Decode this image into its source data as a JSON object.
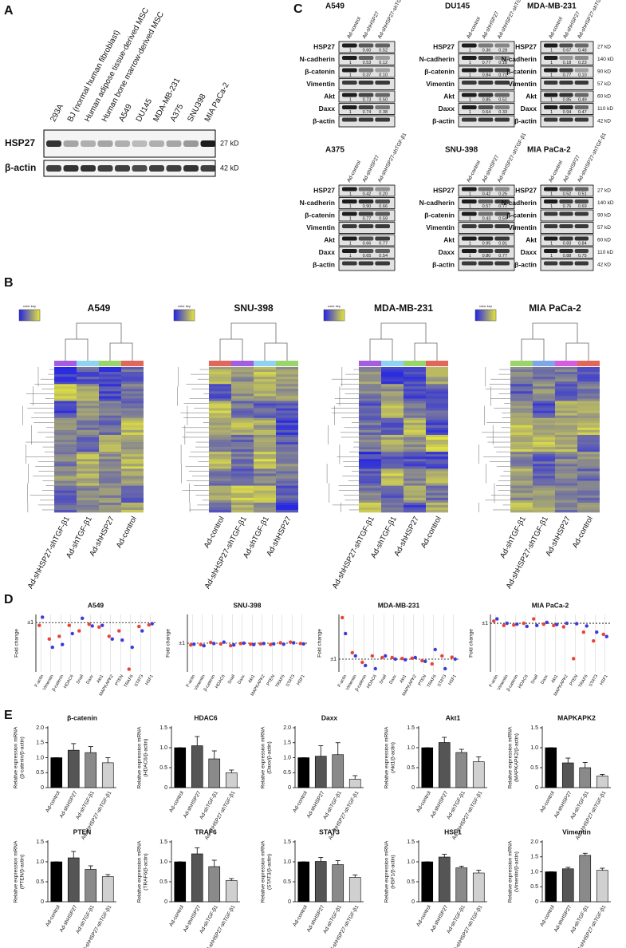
{
  "panel_labels": [
    "A",
    "B",
    "C",
    "D",
    "E"
  ],
  "blot_a": {
    "lanes": [
      "293A",
      "BJ (normal human fibroblast)",
      "Human adipose tissue-derived MSC",
      "Human bone marrow-derived MSC",
      "A549",
      "DU145",
      "MDA-MB-231",
      "A375",
      "SNU398",
      "MIA PaCa-2"
    ],
    "rows": [
      {
        "name": "HSP27",
        "size": "27 kD"
      },
      {
        "name": "β-actin",
        "size": "42 kD"
      }
    ]
  },
  "blots_c": {
    "lanes": [
      "Ad-control",
      "Ad-shHSP27",
      "Ad-shHSP27-shTGF-β1"
    ],
    "sizes": [
      "27 kD",
      "140 kD",
      "90 kD",
      "57 kD",
      "60 kD",
      "110 kD",
      "42 kD"
    ],
    "blots": [
      {
        "title": "A549",
        "rows": [
          {
            "name": "HSP27",
            "values": [
              "1",
              "0.60",
              "0.52"
            ]
          },
          {
            "name": "N-cadherin",
            "values": [
              "1",
              "0.53",
              "0.12"
            ]
          },
          {
            "name": "β-catenin",
            "values": [
              "1",
              "0.37",
              "0.10"
            ]
          },
          {
            "name": "Vimentin"
          },
          {
            "name": "Akt",
            "values": [
              "1",
              "0.73",
              "0.50"
            ]
          },
          {
            "name": "Daxx",
            "values": [
              "1",
              "0.74",
              "0.38"
            ]
          },
          {
            "name": "β-actin"
          }
        ]
      },
      {
        "title": "DU145",
        "rows": [
          {
            "name": "HSP27",
            "values": [
              "1",
              "0.36",
              "0.28"
            ]
          },
          {
            "name": "N-cadherin",
            "values": [
              "1",
              "0.77",
              "0.18"
            ]
          },
          {
            "name": "β-catenin",
            "values": [
              "1",
              "0.84",
              "0.71"
            ]
          },
          {
            "name": "Vimentin"
          },
          {
            "name": "Akt",
            "values": [
              "1",
              "0.85",
              "0.51"
            ]
          },
          {
            "name": "Daxx",
            "values": [
              "1",
              "0.64",
              "0.33"
            ]
          },
          {
            "name": "β-actin"
          }
        ]
      },
      {
        "title": "MDA-MB-231",
        "rows": [
          {
            "name": "HSP27",
            "values": [
              "1",
              "0.67",
              "0.48"
            ]
          },
          {
            "name": "N-cadherin",
            "values": [
              "1",
              "0.18",
              "0.23"
            ]
          },
          {
            "name": "β-catenin",
            "values": [
              "1",
              "0.77",
              "0.10"
            ]
          },
          {
            "name": "Vimentin"
          },
          {
            "name": "Akt",
            "values": [
              "1",
              "0.85",
              "0.49"
            ]
          },
          {
            "name": "Daxx",
            "values": [
              "1",
              "0.94",
              "0.47"
            ]
          },
          {
            "name": "β-actin"
          }
        ]
      },
      {
        "title": "A375",
        "rows": [
          {
            "name": "HSP27",
            "values": [
              "1",
              "0.42",
              "0.20"
            ]
          },
          {
            "name": "N-cadherin",
            "values": [
              "1",
              "0.90",
              "0.66"
            ]
          },
          {
            "name": "β-catenin",
            "values": [
              "1",
              "0.77",
              "0.59"
            ]
          },
          {
            "name": "Vimentin"
          },
          {
            "name": "Akt",
            "values": [
              "1",
              "0.66",
              "0.77"
            ]
          },
          {
            "name": "Daxx",
            "values": [
              "1",
              "0.65",
              "0.54"
            ]
          },
          {
            "name": "β-actin"
          }
        ]
      },
      {
        "title": "SNU-398",
        "rows": [
          {
            "name": "HSP27",
            "values": [
              "1",
              "0.42",
              "0.25"
            ]
          },
          {
            "name": "N-cadherin",
            "values": [
              "1",
              "0.57",
              "0.77"
            ]
          },
          {
            "name": "β-catenin",
            "values": [
              "1",
              "0.43",
              "0.59"
            ]
          },
          {
            "name": "Vimentin"
          },
          {
            "name": "Akt",
            "values": [
              "1",
              "0.95",
              "0.81"
            ]
          },
          {
            "name": "Daxx",
            "values": [
              "1",
              "0.80",
              "0.77"
            ]
          },
          {
            "name": "β-actin"
          }
        ]
      },
      {
        "title": "MIA PaCa-2",
        "rows": [
          {
            "name": "HSP27",
            "values": [
              "1",
              "0.52",
              "0.51"
            ]
          },
          {
            "name": "N-cadherin",
            "values": [
              "1",
              "0.76",
              "0.69"
            ]
          },
          {
            "name": "β-catenin"
          },
          {
            "name": "Vimentin"
          },
          {
            "name": "Akt",
            "values": [
              "1",
              "0.83",
              "0.84"
            ]
          },
          {
            "name": "Daxx",
            "values": [
              "1",
              "0.88",
              "0.75"
            ]
          },
          {
            "name": "β-actin"
          }
        ]
      }
    ]
  },
  "heatmaps": {
    "color_key": "color key",
    "low_color": "#2323e6",
    "high_color": "#e6e63c",
    "maps": [
      {
        "title": "A549",
        "columns": [
          "Ad-shHSP27-shTGF-β1",
          "Ad-shTGF-β1",
          "Ad-shHSP27",
          "Ad-control"
        ],
        "colors": [
          "#a35de0",
          "#8fd3f0",
          "#9ad46a",
          "#e0675a"
        ]
      },
      {
        "title": "SNU-398",
        "columns": [
          "Ad-control",
          "Ad-shHSP27-shTGF-β1",
          "Ad-shTGF-β1",
          "Ad-shHSP27"
        ],
        "colors": [
          "#e0675a",
          "#a35de0",
          "#8fd3f0",
          "#9ad46a"
        ]
      },
      {
        "title": "MDA-MB-231",
        "columns": [
          "Ad-shHSP27-shTGF-β1",
          "Ad-shTGF-β1",
          "Ad-shHSP27",
          "Ad-control"
        ],
        "colors": [
          "#a35de0",
          "#8fd3f0",
          "#9ad46a",
          "#e0675a"
        ]
      },
      {
        "title": "MIA PaCa-2",
        "columns": [
          "Ad-shTGF-β1",
          "Ad-shHSP27-shTGF-β1",
          "Ad-shHSP27",
          "Ad-control"
        ],
        "colors": [
          "#9ad46a",
          "#7fa6e8",
          "#d45de0",
          "#e0675a"
        ]
      }
    ]
  },
  "chart_data": [
    {
      "type": "dot",
      "title": "A549",
      "ylabel": "Fold change",
      "categories": [
        "F-actin",
        "Vimentin",
        "β-catenin",
        "HDAC6",
        "Snail",
        "Daxx",
        "Akt1",
        "MAPKAPK2",
        "PTEN",
        "TRAF6",
        "STAT3",
        "HSF1"
      ],
      "series": [
        {
          "color": "#e8433a",
          "values": [
            0.5,
            -2,
            -1.5,
            0.5,
            -0.5,
            0.7,
            0.2,
            -1.5,
            -0.5,
            -7.5,
            0.3,
            0.6
          ]
        },
        {
          "color": "#3b3bd9",
          "values": [
            2,
            -3.5,
            -3,
            -1,
            1.8,
            0.4,
            0.5,
            -2,
            -2.2,
            -3.5,
            -0.5,
            0.8
          ]
        }
      ],
      "ylim": [
        -8,
        2.5
      ],
      "yticks": [
        {
          "value": 1,
          "label": "±1"
        }
      ],
      "grid": true
    },
    {
      "type": "dot",
      "title": "SNU-398",
      "ylabel": "Fold change",
      "categories": [
        "F-actin",
        "Vimentin",
        "β-catenin",
        "HDAC6",
        "Snail",
        "Daxx",
        "Akt1",
        "MAPKAPK2",
        "PTEN",
        "TRAF6",
        "STAT3",
        "HSF1"
      ],
      "series": [
        {
          "color": "#e8433a",
          "values": [
            0.5,
            0.6,
            1.2,
            0.8,
            0.3,
            0.9,
            0.7,
            0.8,
            0.6,
            1.1,
            1.3,
            0.9
          ]
        },
        {
          "color": "#3b3bd9",
          "values": [
            0.7,
            0.3,
            0.9,
            1.3,
            0.5,
            1,
            0.6,
            0.9,
            0.8,
            0.7,
            1.1,
            0.8
          ]
        }
      ],
      "ylim": [
        -7,
        9
      ],
      "yticks": [
        {
          "value": 1,
          "label": "±1"
        }
      ],
      "grid": true
    },
    {
      "type": "dot",
      "title": "MDA-MB-231",
      "ylabel": "Fold change",
      "categories": [
        "F-actin",
        "Vimentin",
        "β-catenin",
        "HDAC6",
        "Snail",
        "Daxx",
        "Akt1",
        "MAPKAPK2",
        "PTEN",
        "TRAF6",
        "STAT3",
        "HSF1"
      ],
      "series": [
        {
          "color": "#e8433a",
          "values": [
            14,
            3,
            0,
            2,
            1.5,
            1.5,
            1.2,
            1.3,
            0.5,
            -0.5,
            2,
            1.6
          ]
        },
        {
          "color": "#3b3bd9",
          "values": [
            9,
            2,
            -1,
            -2,
            2,
            1,
            0.8,
            1.5,
            0.3,
            4,
            -2,
            1
          ]
        }
      ],
      "ylim": [
        -3,
        15
      ],
      "yticks": [
        {
          "value": 1,
          "label": "±1"
        }
      ],
      "grid": true
    },
    {
      "type": "dot",
      "title": "MIA PaCa-2",
      "ylabel": "Fold change",
      "categories": [
        "F-actin",
        "Vimentin",
        "β-catenin",
        "HDAC6",
        "Snail",
        "Daxx",
        "Akt1",
        "MAPKAPK2",
        "PTEN",
        "TRAF6",
        "STAT3",
        "HSF1"
      ],
      "series": [
        {
          "color": "#e8433a",
          "values": [
            1.5,
            0.5,
            0.6,
            1,
            2,
            0.8,
            0.5,
            0.2,
            -7,
            -1,
            -3,
            -1.5
          ]
        },
        {
          "color": "#3b3bd9",
          "values": [
            2,
            1,
            0.8,
            0.3,
            0.5,
            1.2,
            0.7,
            1,
            0.9,
            0.4,
            -1,
            -2
          ]
        }
      ],
      "ylim": [
        -10,
        3
      ],
      "yticks": [
        {
          "value": 1,
          "label": "±1"
        }
      ],
      "grid": true
    },
    {
      "type": "bar",
      "title": "β-catenin",
      "ylabel": [
        "Relative expression mRNA",
        "(β-catenin/β-actin)"
      ],
      "categories": [
        "Ad-control",
        "Ad-shHSP27",
        "Ad-shTGF-β1",
        "Ad-shHSP27-shTGF-β1"
      ],
      "values": [
        1,
        1.25,
        1.17,
        0.83
      ],
      "errors": [
        0,
        0.22,
        0.2,
        0.17
      ],
      "colors": [
        "#000000",
        "#555555",
        "#8a8a8a",
        "#d0d0d0"
      ],
      "ylim": [
        0,
        2
      ],
      "yticks": [
        0,
        0.5,
        {
          "value": 1,
          "label": "1.0"
        },
        1.5,
        {
          "value": 2,
          "label": "2.0"
        }
      ]
    },
    {
      "type": "bar",
      "title": "HDAC6",
      "ylabel": [
        "Relative expression mRNA",
        "(HDAC6/β-actin)"
      ],
      "categories": [
        "Ad-control",
        "Ad-shHSP27",
        "Ad-shTGF-β1",
        "Ad-shHSP27-shTGF-β1"
      ],
      "values": [
        1,
        1.05,
        0.72,
        0.37
      ],
      "errors": [
        0,
        0.23,
        0.2,
        0.07
      ],
      "colors": [
        "#000000",
        "#555555",
        "#8a8a8a",
        "#d0d0d0"
      ],
      "ylim": [
        0,
        1.5
      ],
      "yticks": [
        0,
        0.5,
        {
          "value": 1,
          "label": "1.0"
        },
        1.5
      ]
    },
    {
      "type": "bar",
      "title": "Daxx",
      "ylabel": [
        "Relative expression mRNA",
        "(Daxx/β-actin)"
      ],
      "categories": [
        "Ad-control",
        "Ad-shHSP27",
        "Ad-shTGF-β1",
        "Ad-shHSP27-shTGF-β1"
      ],
      "values": [
        1,
        1.05,
        1.1,
        0.28
      ],
      "errors": [
        0,
        0.35,
        0.4,
        0.12
      ],
      "colors": [
        "#000000",
        "#555555",
        "#8a8a8a",
        "#d0d0d0"
      ],
      "ylim": [
        0,
        2
      ],
      "yticks": [
        0,
        0.5,
        {
          "value": 1,
          "label": "1.0"
        },
        1.5,
        {
          "value": 2,
          "label": "2.0"
        }
      ]
    },
    {
      "type": "bar",
      "title": "Akt1",
      "ylabel": [
        "Relative expression mRNA",
        "(Akt1/β-actin)"
      ],
      "categories": [
        "Ad-control",
        "Ad-shHSP27",
        "Ad-shTGF-β1",
        "Ad-shHSP27-shTGF-β1"
      ],
      "values": [
        1,
        1.13,
        0.88,
        0.65
      ],
      "errors": [
        0,
        0.13,
        0.08,
        0.12
      ],
      "colors": [
        "#000000",
        "#555555",
        "#8a8a8a",
        "#d0d0d0"
      ],
      "ylim": [
        0,
        1.5
      ],
      "yticks": [
        0,
        0.5,
        {
          "value": 1,
          "label": "1.0"
        },
        1.5
      ]
    },
    {
      "type": "bar",
      "title": "MAPKAPK2",
      "ylabel": [
        "Relative expression mRNA",
        "(MAPKAPK2/β-actin)"
      ],
      "categories": [
        "Ad-control",
        "Ad-shHSP27",
        "Ad-shTGF-β1",
        "Ad-shHSP27-shTGF-β1"
      ],
      "values": [
        1,
        0.62,
        0.5,
        0.29
      ],
      "errors": [
        0,
        0.12,
        0.13,
        0.04
      ],
      "colors": [
        "#000000",
        "#555555",
        "#8a8a8a",
        "#d0d0d0"
      ],
      "ylim": [
        0,
        1.5
      ],
      "yticks": [
        0,
        0.5,
        {
          "value": 1,
          "label": "1.0"
        },
        1.5
      ]
    },
    {
      "type": "bar",
      "title": "PTEN",
      "ylabel": [
        "Relative expression mRNA",
        "(PTEN/β-actin)"
      ],
      "categories": [
        "Ad-control",
        "Ad-shHSP27",
        "Ad-shTGF-β1",
        "Ad-shHSP27-shTGF-β1"
      ],
      "values": [
        1,
        1.1,
        0.81,
        0.63
      ],
      "errors": [
        0,
        0.16,
        0.09,
        0.05
      ],
      "colors": [
        "#000000",
        "#555555",
        "#8a8a8a",
        "#d0d0d0"
      ],
      "ylim": [
        0,
        1.5
      ],
      "yticks": [
        0,
        0.5,
        {
          "value": 1,
          "label": "1.0"
        },
        1.5
      ]
    },
    {
      "type": "bar",
      "title": "TRAF6",
      "ylabel": [
        "Relative expression mRNA",
        "(TRAF6/β-actin)"
      ],
      "categories": [
        "Ad-control",
        "Ad-shHSP27",
        "Ad-shTGF-β1",
        "Ad-shHSP27-shTGF-β1"
      ],
      "values": [
        1,
        1.2,
        0.88,
        0.53
      ],
      "errors": [
        0,
        0.15,
        0.16,
        0.05
      ],
      "colors": [
        "#000000",
        "#555555",
        "#8a8a8a",
        "#d0d0d0"
      ],
      "ylim": [
        0,
        1.5
      ],
      "yticks": [
        0,
        0.5,
        {
          "value": 1,
          "label": "1.0"
        },
        1.5
      ]
    },
    {
      "type": "bar",
      "title": "STAT3",
      "ylabel": [
        "Relative expression mRNA",
        "(STAT3/β-actin)"
      ],
      "categories": [
        "Ad-control",
        "Ad-shHSP27",
        "Ad-shTGF-β1",
        "Ad-shHSP27-shTGF-β1"
      ],
      "values": [
        1,
        1.01,
        0.93,
        0.61
      ],
      "errors": [
        0,
        0.1,
        0.1,
        0.06
      ],
      "colors": [
        "#000000",
        "#555555",
        "#8a8a8a",
        "#d0d0d0"
      ],
      "ylim": [
        0,
        1.5
      ],
      "yticks": [
        0,
        0.5,
        {
          "value": 1,
          "label": "1.0"
        },
        1.5
      ]
    },
    {
      "type": "bar",
      "title": "HSF1",
      "ylabel": [
        "Relative expression mRNA",
        "(HSF1/β-actin)"
      ],
      "categories": [
        "Ad-control",
        "Ad-shHSP27",
        "Ad-shTGF-β1",
        "Ad-shHSP27-shTGF-β1"
      ],
      "values": [
        1,
        1.12,
        0.85,
        0.72
      ],
      "errors": [
        0,
        0.07,
        0.04,
        0.07
      ],
      "colors": [
        "#000000",
        "#555555",
        "#8a8a8a",
        "#d0d0d0"
      ],
      "ylim": [
        0,
        1.5
      ],
      "yticks": [
        0,
        0.5,
        {
          "value": 1,
          "label": "1.0"
        },
        1.5
      ]
    },
    {
      "type": "bar",
      "title": "Vimentin",
      "ylabel": [
        "Relative expression mRNA",
        "(Vimentin/β-actin)"
      ],
      "categories": [
        "Ad-control",
        "Ad-shHSP27",
        "Ad-shTGF-β1",
        "Ad-shHSP27-shTGF-β1"
      ],
      "values": [
        1,
        1.1,
        1.55,
        1.05
      ],
      "errors": [
        0,
        0.05,
        0.07,
        0.07
      ],
      "colors": [
        "#000000",
        "#555555",
        "#8a8a8a",
        "#d0d0d0"
      ],
      "ylim": [
        0,
        2
      ],
      "yticks": [
        0,
        0.5,
        {
          "value": 1,
          "label": "1.0"
        },
        1.5,
        {
          "value": 2,
          "label": "2.0"
        }
      ]
    }
  ]
}
